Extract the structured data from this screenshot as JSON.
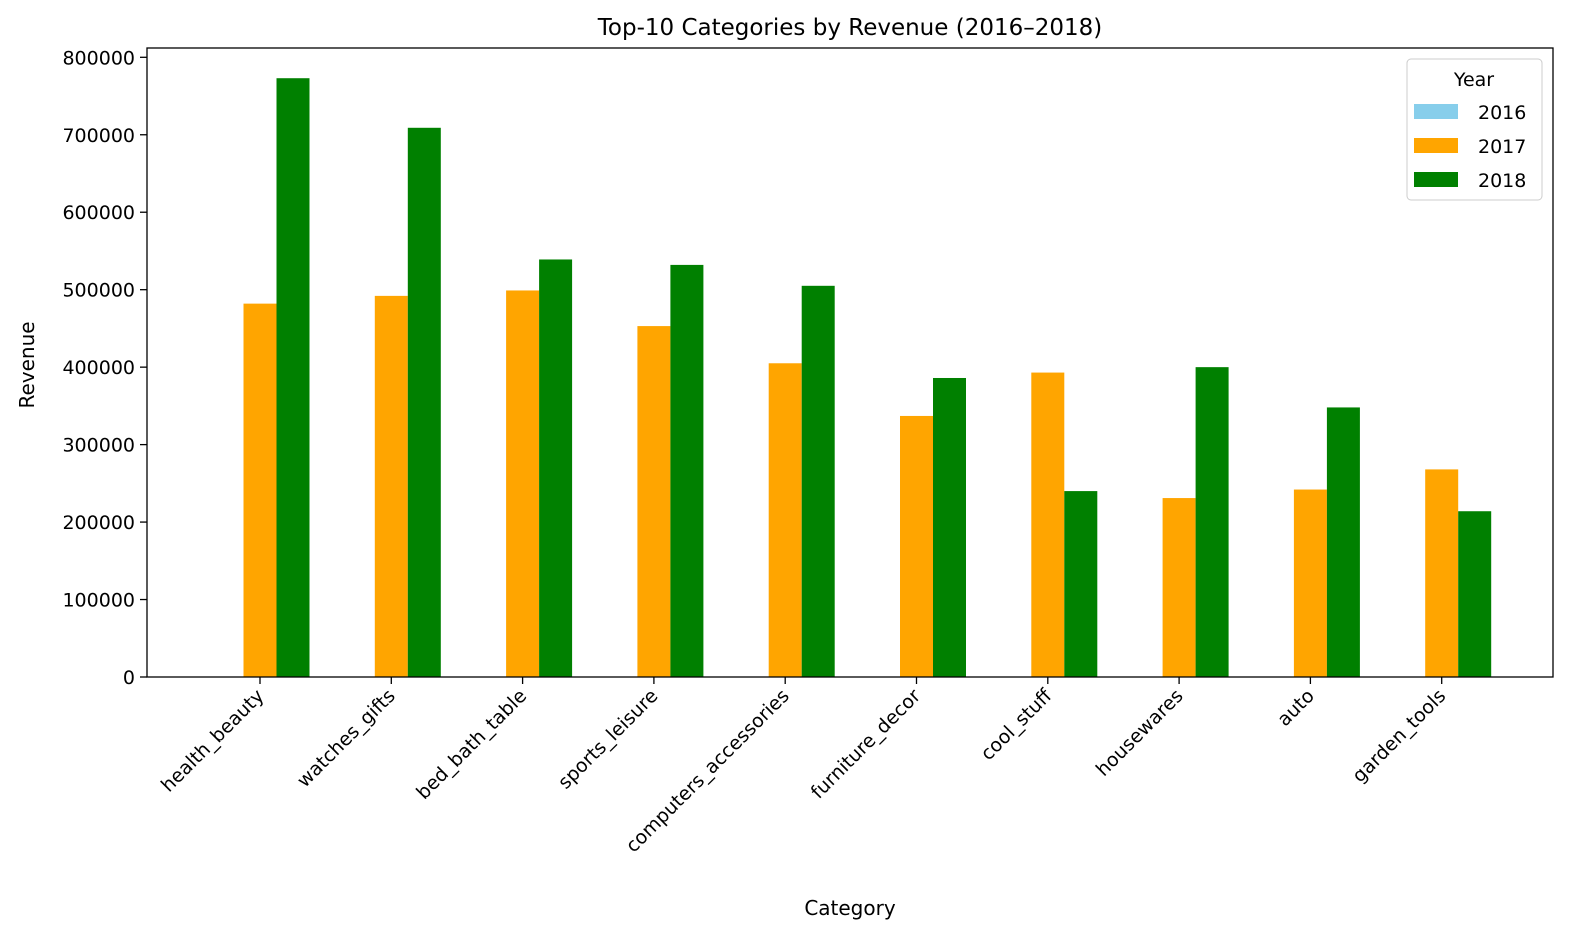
{
  "chart_data": {
    "type": "bar",
    "title": "Top-10 Categories by Revenue (2016–2018)",
    "xlabel": "Category",
    "ylabel": "Revenue",
    "ylim": [
      0,
      812000
    ],
    "yticks": [
      0,
      100000,
      200000,
      300000,
      400000,
      500000,
      600000,
      700000,
      800000
    ],
    "grid": false,
    "legend": {
      "title": "Year",
      "placement": "top-right"
    },
    "categories": [
      "health_beauty",
      "watches_gifts",
      "bed_bath_table",
      "sports_leisure",
      "computers_accessories",
      "furniture_decor",
      "cool_stuff",
      "housewares",
      "auto",
      "garden_tools"
    ],
    "series": [
      {
        "name": "2016",
        "color": "#87ceeb",
        "values": [
          0,
          0,
          0,
          0,
          0,
          0,
          0,
          0,
          0,
          0
        ]
      },
      {
        "name": "2017",
        "color": "#ffa500",
        "values": [
          482000,
          492000,
          499000,
          453000,
          405000,
          337000,
          393000,
          231000,
          242000,
          268000
        ]
      },
      {
        "name": "2018",
        "color": "#008000",
        "values": [
          773000,
          709000,
          539000,
          532000,
          505000,
          386000,
          240000,
          400000,
          348000,
          214000
        ]
      }
    ]
  }
}
